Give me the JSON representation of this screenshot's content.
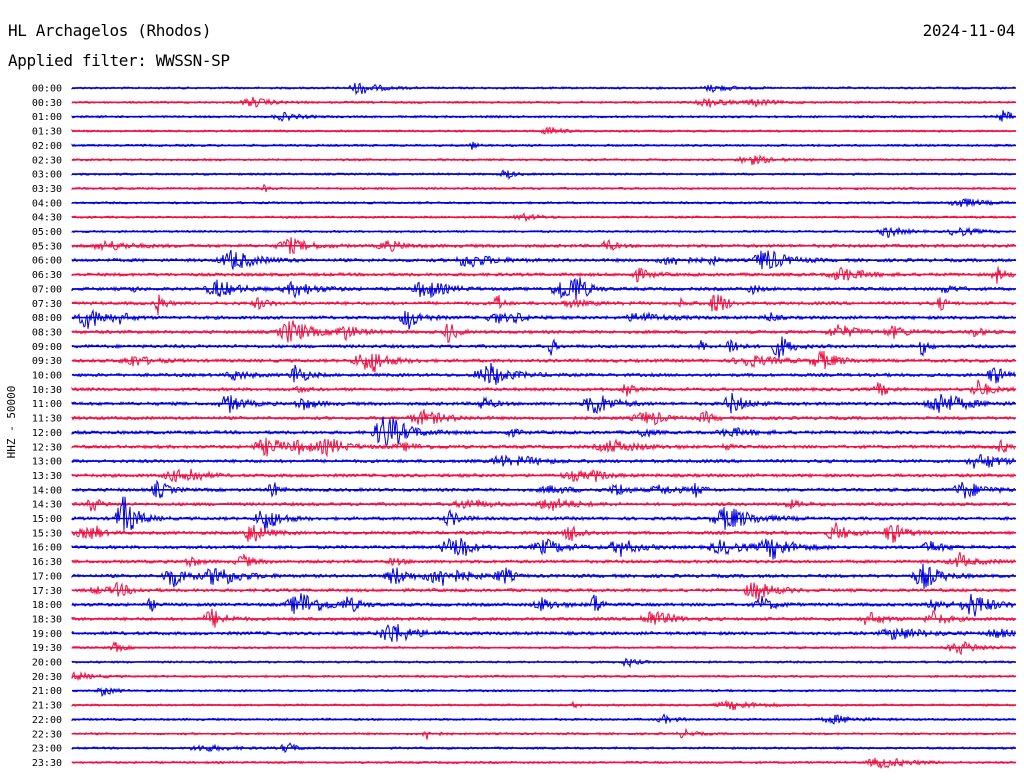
{
  "header": {
    "station": "HL Archagelos (Rhodos)",
    "date": "2024-11-04",
    "filter": "Applied filter: WWSSN-SP"
  },
  "chart_data": {
    "type": "line",
    "ylabel": "HHZ - 50000",
    "tick_labels": [
      "00:00",
      "00:30",
      "01:00",
      "01:30",
      "02:00",
      "02:30",
      "03:00",
      "03:30",
      "04:00",
      "04:30",
      "05:00",
      "05:30",
      "06:00",
      "06:30",
      "07:00",
      "07:30",
      "08:00",
      "08:30",
      "09:00",
      "09:30",
      "10:00",
      "10:30",
      "11:00",
      "11:30",
      "12:00",
      "12:30",
      "13:00",
      "13:30",
      "14:00",
      "14:30",
      "15:00",
      "15:30",
      "16:00",
      "16:30",
      "17:00",
      "17:30",
      "18:00",
      "18:30",
      "19:00",
      "19:30",
      "20:00",
      "20:30",
      "21:00",
      "21:30",
      "22:00",
      "22:30",
      "23:00",
      "23:30"
    ],
    "colors": {
      "even": "#0000dd",
      "odd": "#ee1144"
    }
  }
}
